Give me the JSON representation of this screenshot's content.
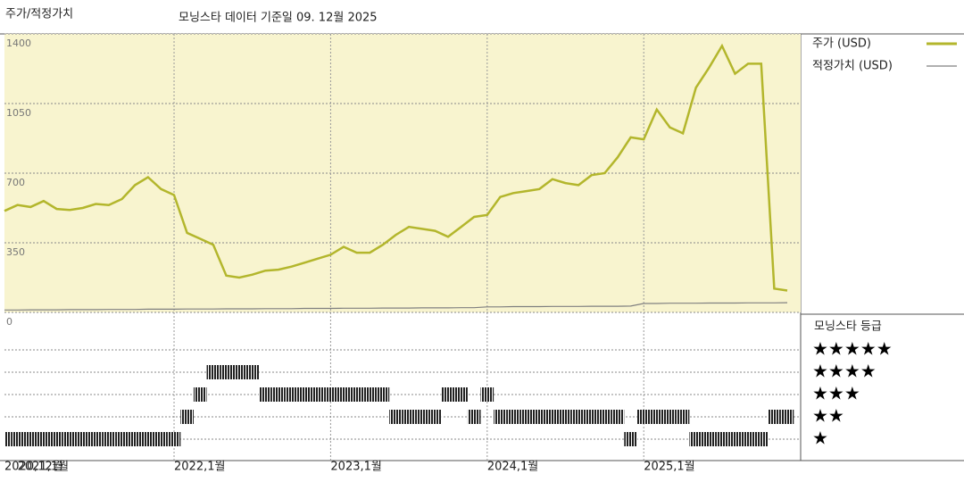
{
  "chart_data": {
    "type": "line",
    "title": "주가/적정가치",
    "subtitle": "모닝스타 데이터 기준일 09. 12월 2025",
    "x": [
      "2020-12",
      "2021-01",
      "2021-02",
      "2021-03",
      "2021-04",
      "2021-05",
      "2021-06",
      "2021-07",
      "2021-08",
      "2021-09",
      "2021-10",
      "2021-11",
      "2021-12",
      "2022-01",
      "2022-02",
      "2022-03",
      "2022-04",
      "2022-05",
      "2022-06",
      "2022-07",
      "2022-08",
      "2022-09",
      "2022-10",
      "2022-11",
      "2022-12",
      "2023-01",
      "2023-02",
      "2023-03",
      "2023-04",
      "2023-05",
      "2023-06",
      "2023-07",
      "2023-08",
      "2023-09",
      "2023-10",
      "2023-11",
      "2023-12",
      "2024-01",
      "2024-02",
      "2024-03",
      "2024-04",
      "2024-05",
      "2024-06",
      "2024-07",
      "2024-08",
      "2024-09",
      "2024-10",
      "2024-11",
      "2024-12",
      "2025-01",
      "2025-02",
      "2025-03",
      "2025-04",
      "2025-05",
      "2025-06",
      "2025-07",
      "2025-08",
      "2025-09",
      "2025-10",
      "2025-11",
      "2025-12"
    ],
    "series": [
      {
        "name": "주가 (USD)",
        "color": "#b3b62c",
        "values": [
          510,
          540,
          530,
          560,
          520,
          515,
          525,
          545,
          540,
          570,
          640,
          680,
          620,
          590,
          400,
          370,
          340,
          185,
          175,
          190,
          210,
          215,
          230,
          250,
          270,
          290,
          330,
          300,
          300,
          340,
          390,
          430,
          420,
          410,
          380,
          430,
          480,
          490,
          580,
          600,
          610,
          620,
          670,
          650,
          640,
          690,
          700,
          780,
          880,
          870,
          1020,
          930,
          900,
          1130,
          1230,
          1340,
          1200,
          1250,
          1250,
          120,
          110
        ]
      },
      {
        "name": "적정가치 (USD)",
        "color": "#808080",
        "values": [
          12,
          12,
          13,
          13,
          13,
          14,
          14,
          14,
          15,
          15,
          15,
          16,
          16,
          16,
          17,
          17,
          17,
          18,
          18,
          18,
          19,
          19,
          19,
          20,
          20,
          20,
          21,
          21,
          21,
          22,
          22,
          22,
          23,
          23,
          23,
          24,
          24,
          28,
          28,
          29,
          29,
          29,
          30,
          30,
          30,
          31,
          31,
          31,
          32,
          45,
          45,
          46,
          46,
          46,
          47,
          47,
          47,
          48,
          48,
          48,
          49
        ]
      }
    ],
    "ylim": [
      0,
      1400
    ],
    "yticks": [
      0,
      350,
      700,
      1050,
      1400
    ],
    "xticks": [
      {
        "value": "2020-12",
        "label": "2020,12월"
      },
      {
        "value": "2021-01",
        "label": "2021,1월"
      },
      {
        "value": "2022-01",
        "label": "2022,1월"
      },
      {
        "value": "2023-01",
        "label": "2023,1월"
      },
      {
        "value": "2024-01",
        "label": "2024,1월"
      },
      {
        "value": "2025-01",
        "label": "2025,1월"
      }
    ],
    "grid": true,
    "background": "#f8f4cf",
    "ratings": {
      "title": "모닝스타 등급",
      "levels": [
        5,
        4,
        3,
        2,
        1
      ],
      "level_labels": [
        "★★★★★",
        "★★★★",
        "★★★",
        "★★",
        "★"
      ],
      "values": [
        1,
        1,
        1,
        1,
        1,
        1,
        1,
        1,
        1,
        1,
        1,
        1,
        1,
        1,
        2,
        3,
        4,
        4,
        4,
        4,
        3,
        3,
        3,
        3,
        3,
        3,
        3,
        3,
        3,
        3,
        2,
        2,
        2,
        2,
        3,
        3,
        2,
        3,
        2,
        2,
        2,
        2,
        2,
        2,
        2,
        2,
        2,
        2,
        1,
        2,
        2,
        2,
        2,
        1,
        1,
        1,
        1,
        1,
        1,
        2,
        2
      ]
    }
  }
}
